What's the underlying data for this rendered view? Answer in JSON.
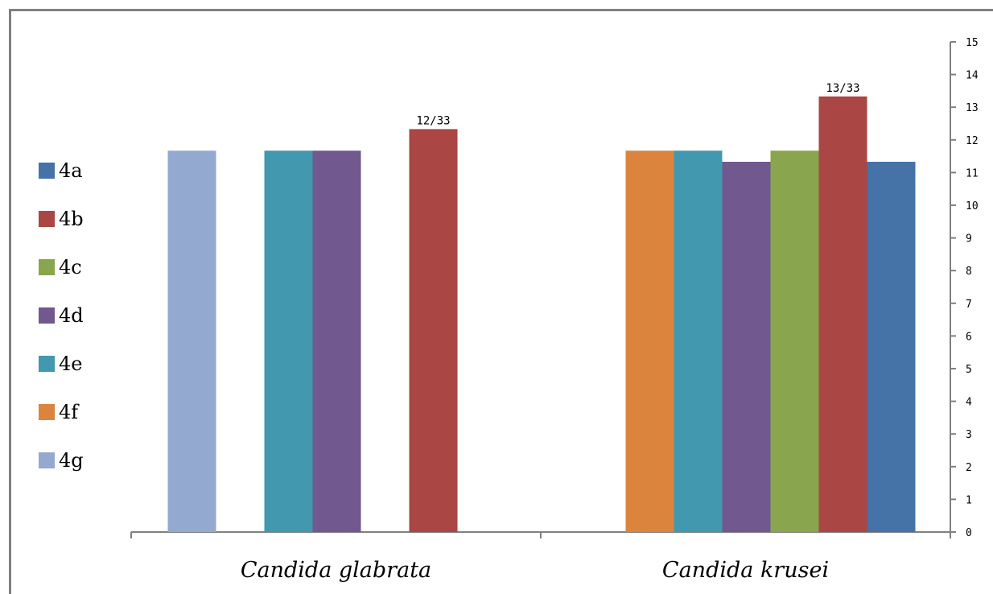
{
  "chart_data": {
    "type": "bar",
    "categories": [
      "Candida glabrata",
      "Candida krusei"
    ],
    "series": [
      {
        "name": "4a",
        "color": "#4572A7",
        "values": [
          null,
          11.33
        ]
      },
      {
        "name": "4b",
        "color": "#AA4643",
        "values": [
          12.33,
          13.33
        ]
      },
      {
        "name": "4c",
        "color": "#89A54E",
        "values": [
          null,
          11.67
        ]
      },
      {
        "name": "4d",
        "color": "#71588F",
        "values": [
          11.67,
          11.33
        ]
      },
      {
        "name": "4e",
        "color": "#4198AF",
        "values": [
          11.67,
          11.67
        ]
      },
      {
        "name": "4f",
        "color": "#DB843D",
        "values": [
          null,
          11.67
        ]
      },
      {
        "name": "4g",
        "color": "#93A9CF",
        "values": [
          11.67,
          null
        ]
      }
    ],
    "data_labels": [
      {
        "series": "4b",
        "category": "Candida glabrata",
        "text": "12/33"
      },
      {
        "series": "4b",
        "category": "Candida krusei",
        "text": "13/33"
      }
    ],
    "y_axis": {
      "position": "right",
      "min": 0,
      "max": 15,
      "step": 1
    },
    "ylim": [
      0,
      15
    ],
    "legend_position": "left",
    "grid": false
  }
}
